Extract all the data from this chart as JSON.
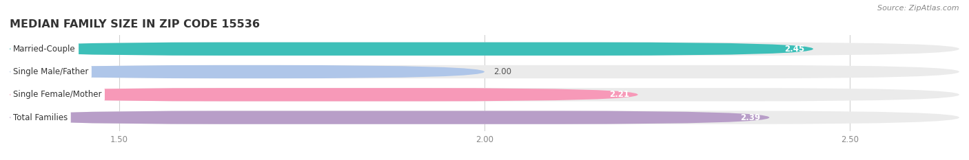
{
  "title": "MEDIAN FAMILY SIZE IN ZIP CODE 15536",
  "source": "Source: ZipAtlas.com",
  "categories": [
    "Married-Couple",
    "Single Male/Father",
    "Single Female/Mother",
    "Total Families"
  ],
  "values": [
    2.45,
    2.0,
    2.21,
    2.39
  ],
  "bar_colors": [
    "#3dbfb8",
    "#afc6e9",
    "#f799b8",
    "#b89ec8"
  ],
  "xlim": [
    1.35,
    2.65
  ],
  "xticks": [
    1.5,
    2.0,
    2.5
  ],
  "xtick_labels": [
    "1.50",
    "2.00",
    "2.50"
  ],
  "bar_height": 0.58,
  "bar_gap": 0.18,
  "background_color": "#ffffff",
  "bar_bg_color": "#ebebeb",
  "title_fontsize": 11.5,
  "label_fontsize": 8.5,
  "value_fontsize": 8.5,
  "source_fontsize": 8
}
